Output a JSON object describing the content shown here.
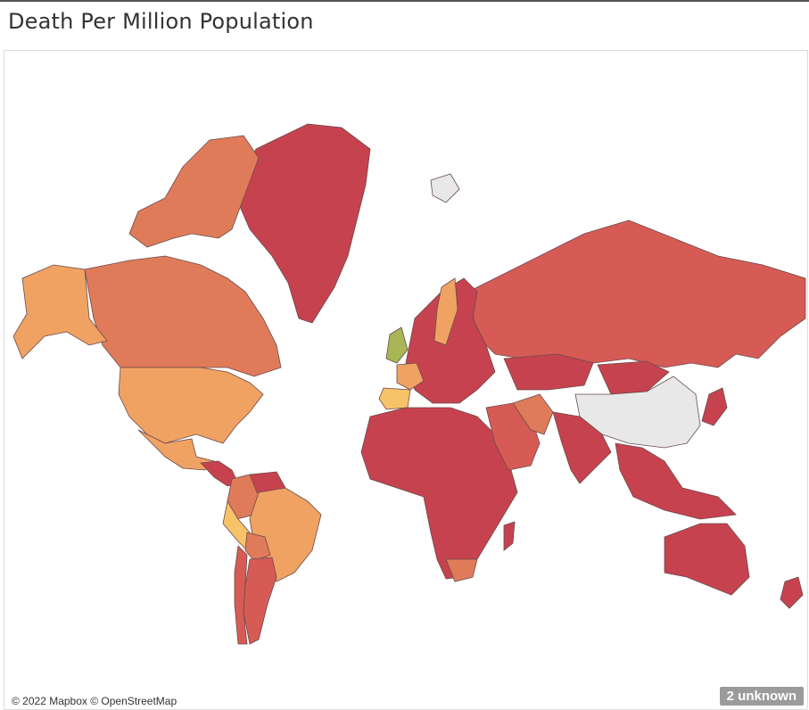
{
  "title": "Death Per Million Population",
  "attribution": "© 2022 Mapbox © OpenStreetMap",
  "unknown_badge": "2 unknown",
  "colors": {
    "high": "#c7424f",
    "mid_high": "#d75b55",
    "mid": "#e07b5a",
    "mid_low": "#f0a263",
    "low": "#f7c268",
    "lowest": "#a8b656",
    "no_data": "#e8e8e8",
    "background": "#ffffff"
  },
  "regions": [
    {
      "name": "Greenland",
      "level": "high"
    },
    {
      "name": "Canada",
      "level": "mid"
    },
    {
      "name": "Alaska",
      "level": "mid_low"
    },
    {
      "name": "United States",
      "level": "mid_low"
    },
    {
      "name": "Mexico",
      "level": "mid_low"
    },
    {
      "name": "Central America",
      "level": "high"
    },
    {
      "name": "Colombia",
      "level": "mid"
    },
    {
      "name": "Venezuela",
      "level": "high"
    },
    {
      "name": "Brazil",
      "level": "mid_low"
    },
    {
      "name": "Peru",
      "level": "low"
    },
    {
      "name": "Bolivia",
      "level": "mid"
    },
    {
      "name": "Argentina",
      "level": "mid_high"
    },
    {
      "name": "Chile",
      "level": "mid_high"
    },
    {
      "name": "Russia",
      "level": "mid_high"
    },
    {
      "name": "Europe",
      "level": "high"
    },
    {
      "name": "Sweden",
      "level": "mid_low"
    },
    {
      "name": "United Kingdom",
      "level": "lowest"
    },
    {
      "name": "Spain",
      "level": "low"
    },
    {
      "name": "France",
      "level": "mid_low"
    },
    {
      "name": "Africa",
      "level": "high"
    },
    {
      "name": "South Africa",
      "level": "mid"
    },
    {
      "name": "Middle East",
      "level": "mid_high"
    },
    {
      "name": "Iran",
      "level": "mid"
    },
    {
      "name": "India",
      "level": "high"
    },
    {
      "name": "China",
      "level": "no_data"
    },
    {
      "name": "Mongolia",
      "level": "high"
    },
    {
      "name": "Kazakhstan",
      "level": "high"
    },
    {
      "name": "Southeast Asia",
      "level": "high"
    },
    {
      "name": "Japan",
      "level": "high"
    },
    {
      "name": "Australia",
      "level": "high"
    },
    {
      "name": "New Zealand",
      "level": "high"
    },
    {
      "name": "Madagascar",
      "level": "high"
    },
    {
      "name": "Svalbard",
      "level": "no_data"
    }
  ]
}
